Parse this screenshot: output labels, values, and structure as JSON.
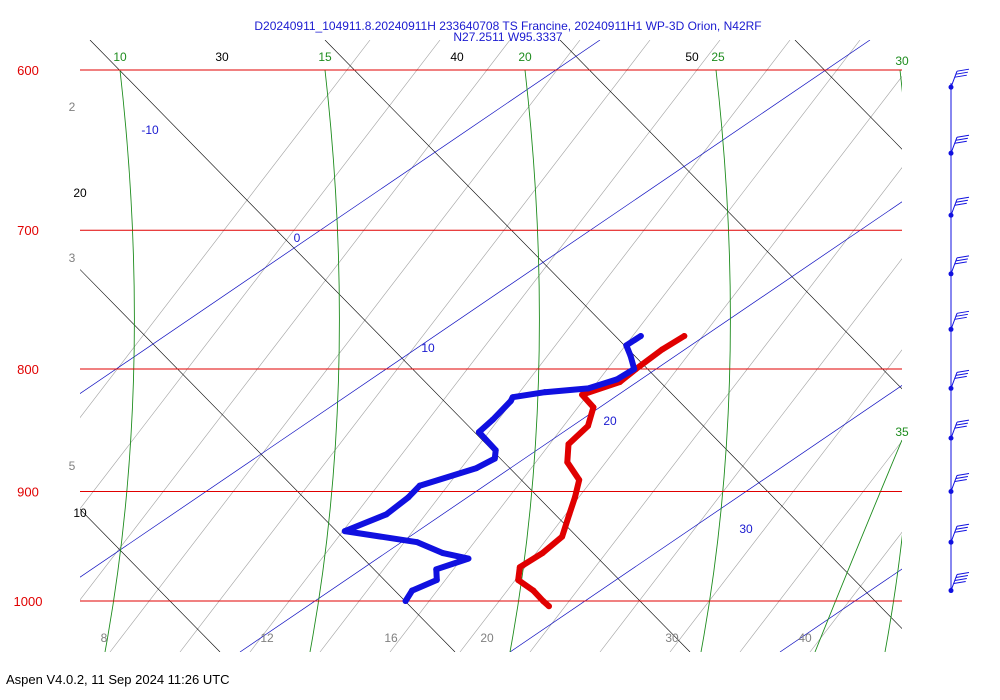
{
  "header": {
    "title_line1": "D20240911_104911.8.20240911H 233640708 TS Francine, 20240911H1 WP-3D Orion, N42RF",
    "title_line2": "N27.2511 W95.3337"
  },
  "footer": {
    "text": "Aspen V4.0.2, 11 Sep 2024  11:26 UTC"
  },
  "colors": {
    "isobar": "#e00000",
    "temperature": "#e00000",
    "dewpoint": "#1010e0",
    "isotherm": "#000000",
    "dry_adiabat": "#1010c0",
    "moist_adiabat": "#1e8c1e",
    "mixing_ratio": "#a0a0a0"
  },
  "chart_data": {
    "type": "skew-t log-p",
    "y_scale": "log",
    "isobars": [
      {
        "p": 600,
        "label": "600"
      },
      {
        "p": 700,
        "label": "700"
      },
      {
        "p": 800,
        "label": "800"
      },
      {
        "p": 900,
        "label": "900"
      },
      {
        "p": 1000,
        "label": "1000"
      }
    ],
    "isotherm_labels": [
      "10",
      "20",
      "30",
      "40",
      "50"
    ],
    "dry_adiabat_labels": [
      "-10",
      "0",
      "10",
      "20",
      "30"
    ],
    "moist_adiabat_labels": [
      "10",
      "15",
      "20",
      "25",
      "30",
      "35"
    ],
    "mixing_ratio_labels": [
      "2",
      "3",
      "5",
      "8",
      "12",
      "16",
      "20",
      "30",
      "40"
    ],
    "temperature_profile": {
      "p": [
        775,
        785,
        800,
        810,
        820,
        830,
        845,
        860,
        875,
        890,
        905,
        920,
        940,
        955,
        968,
        980,
        990,
        1000,
        1005
      ],
      "value": [
        16.7,
        16.2,
        15.8,
        15.6,
        14.2,
        15.5,
        16.2,
        16.1,
        17.0,
        18.6,
        19.3,
        19.9,
        20.7,
        20.5,
        20.0,
        20.6,
        22.0,
        23.1,
        23.7
      ]
    },
    "dewpoint_profile": {
      "p": [
        775,
        782,
        790,
        800,
        808,
        815,
        818,
        822,
        825,
        840,
        850,
        865,
        872,
        880,
        895,
        905,
        920,
        935,
        945,
        955,
        960,
        970,
        980,
        990,
        1000
      ],
      "value": [
        14.3,
        14.0,
        14.8,
        15.7,
        15.3,
        14.2,
        12.0,
        10.5,
        10.6,
        10.6,
        10.5,
        12.4,
        12.8,
        12.3,
        10.1,
        10.1,
        9.8,
        8.4,
        13.0,
        15.0,
        16.7,
        15.5,
        16.1,
        15.3,
        15.5
      ]
    },
    "wind_barbs": {
      "p": [
        610,
        650,
        690,
        730,
        770,
        815,
        855,
        900,
        945,
        990
      ],
      "speed_kt": [
        25,
        30,
        30,
        30,
        30,
        30,
        30,
        30,
        30,
        35
      ]
    }
  }
}
